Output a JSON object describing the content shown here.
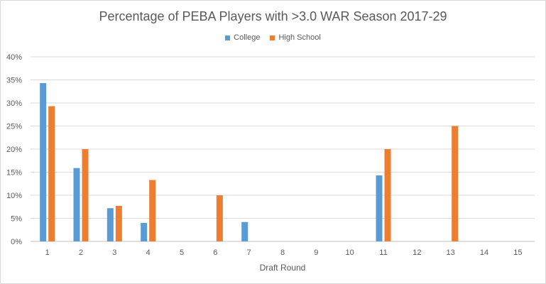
{
  "chart_data": {
    "type": "bar",
    "title": "Percentage of PEBA Players with >3.0 WAR Season 2017-29",
    "xlabel": "Draft Round",
    "ylabel": "",
    "categories": [
      "1",
      "2",
      "3",
      "4",
      "5",
      "6",
      "7",
      "8",
      "9",
      "10",
      "11",
      "12",
      "13",
      "14",
      "15"
    ],
    "ylim": [
      0,
      0.4
    ],
    "yticks": [
      "0%",
      "5%",
      "10%",
      "15%",
      "20%",
      "25%",
      "30%",
      "35%",
      "40%"
    ],
    "grid": true,
    "legend_position": "top",
    "series": [
      {
        "name": "College",
        "color": "#5b9bd5",
        "values": [
          0.343,
          0.159,
          0.072,
          0.04,
          0,
          0,
          0.042,
          0,
          0,
          0,
          0.143,
          0,
          0,
          0,
          0
        ]
      },
      {
        "name": "High School",
        "color": "#ed7d31",
        "values": [
          0.293,
          0.2,
          0.077,
          0.133,
          0,
          0.1,
          0,
          0,
          0,
          0,
          0.2,
          0,
          0.25,
          0,
          0
        ]
      }
    ]
  }
}
